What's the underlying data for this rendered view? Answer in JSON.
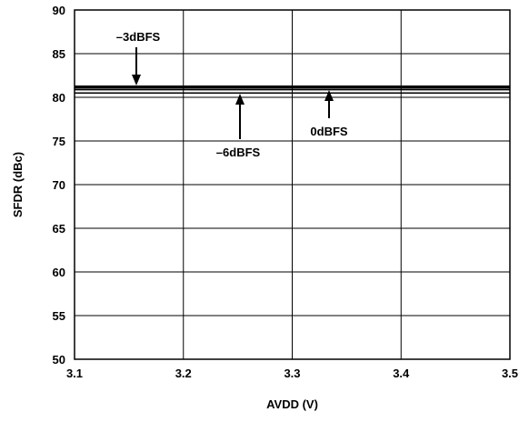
{
  "chart_data": {
    "type": "line",
    "title": "",
    "xlabel": "AVDD (V)",
    "ylabel": "SFDR (dBc)",
    "xlim": [
      3.1,
      3.5
    ],
    "ylim": [
      50,
      90
    ],
    "x_ticks": [
      "3.1",
      "3.2",
      "3.3",
      "3.4",
      "3.5"
    ],
    "y_ticks": [
      "50",
      "55",
      "60",
      "65",
      "70",
      "75",
      "80",
      "85",
      "90"
    ],
    "grid": true,
    "series": [
      {
        "x": [
          3.1,
          3.5
        ],
        "values": [
          81.2,
          81.2
        ],
        "color": "#000000"
      },
      {
        "x": [
          3.1,
          3.5
        ],
        "values": [
          80.9,
          80.9
        ],
        "color": "#000000"
      },
      {
        "x": [
          3.1,
          3.5
        ],
        "values": [
          80.5,
          80.5
        ],
        "color": "#000000"
      }
    ],
    "annotations": [
      {
        "text": "–3dBFS"
      },
      {
        "text": "–6dBFS"
      },
      {
        "text": "0dBFS"
      }
    ]
  }
}
